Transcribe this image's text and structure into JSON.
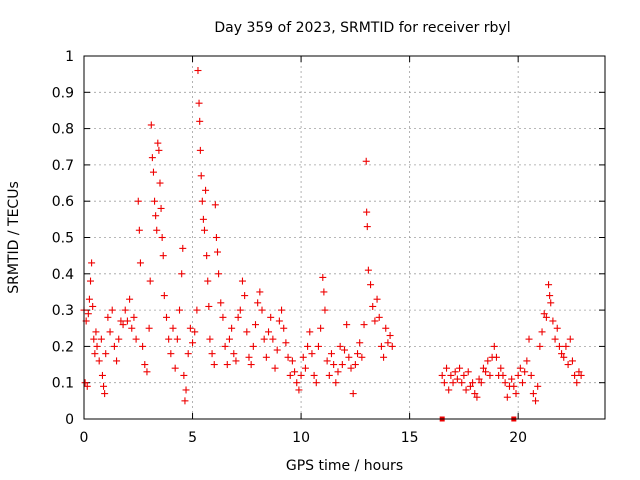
{
  "chart_data": {
    "type": "scatter",
    "title": "Day 359 of 2023, SRMTID for receiver rbyl",
    "xlabel": "GPS time / hours",
    "ylabel": "SRMTID / TECUs",
    "xlim": [
      0,
      24
    ],
    "ylim": [
      0,
      1
    ],
    "x_ticks": [
      0,
      5,
      10,
      15,
      20
    ],
    "y_ticks": [
      0,
      0.1,
      0.2,
      0.3,
      0.4,
      0.5,
      0.6,
      0.7,
      0.8,
      0.9,
      1
    ],
    "grid": true,
    "marker": "plus",
    "color": "#ee0000",
    "series": [
      {
        "name": "SRMTID",
        "points": [
          [
            0.0,
            0.3
          ],
          [
            0.05,
            0.1
          ],
          [
            0.1,
            0.27
          ],
          [
            0.15,
            0.09
          ],
          [
            0.2,
            0.29
          ],
          [
            0.25,
            0.33
          ],
          [
            0.3,
            0.38
          ],
          [
            0.35,
            0.43
          ],
          [
            0.4,
            0.31
          ],
          [
            0.45,
            0.22
          ],
          [
            0.5,
            0.18
          ],
          [
            0.55,
            0.24
          ],
          [
            0.6,
            0.2
          ],
          [
            0.7,
            0.16
          ],
          [
            0.8,
            0.22
          ],
          [
            0.85,
            0.12
          ],
          [
            0.9,
            0.09
          ],
          [
            0.95,
            0.07
          ],
          [
            1.0,
            0.18
          ],
          [
            1.1,
            0.28
          ],
          [
            1.2,
            0.24
          ],
          [
            1.3,
            0.3
          ],
          [
            1.4,
            0.2
          ],
          [
            1.5,
            0.16
          ],
          [
            1.6,
            0.22
          ],
          [
            1.7,
            0.27
          ],
          [
            1.8,
            0.26
          ],
          [
            1.9,
            0.3
          ],
          [
            2.0,
            0.27
          ],
          [
            2.1,
            0.33
          ],
          [
            2.2,
            0.25
          ],
          [
            2.3,
            0.28
          ],
          [
            2.4,
            0.22
          ],
          [
            2.5,
            0.6
          ],
          [
            2.55,
            0.52
          ],
          [
            2.6,
            0.43
          ],
          [
            2.7,
            0.2
          ],
          [
            2.8,
            0.15
          ],
          [
            2.9,
            0.13
          ],
          [
            3.0,
            0.25
          ],
          [
            3.05,
            0.38
          ],
          [
            3.1,
            0.81
          ],
          [
            3.15,
            0.72
          ],
          [
            3.2,
            0.68
          ],
          [
            3.25,
            0.6
          ],
          [
            3.3,
            0.56
          ],
          [
            3.35,
            0.52
          ],
          [
            3.4,
            0.76
          ],
          [
            3.45,
            0.74
          ],
          [
            3.5,
            0.65
          ],
          [
            3.55,
            0.58
          ],
          [
            3.6,
            0.5
          ],
          [
            3.65,
            0.45
          ],
          [
            3.7,
            0.34
          ],
          [
            3.8,
            0.28
          ],
          [
            3.9,
            0.22
          ],
          [
            4.0,
            0.18
          ],
          [
            4.1,
            0.25
          ],
          [
            4.2,
            0.14
          ],
          [
            4.3,
            0.22
          ],
          [
            4.4,
            0.3
          ],
          [
            4.5,
            0.4
          ],
          [
            4.55,
            0.47
          ],
          [
            4.6,
            0.12
          ],
          [
            4.65,
            0.05
          ],
          [
            4.7,
            0.08
          ],
          [
            4.8,
            0.18
          ],
          [
            4.9,
            0.25
          ],
          [
            5.0,
            0.21
          ],
          [
            5.1,
            0.24
          ],
          [
            5.2,
            0.3
          ],
          [
            5.25,
            0.96
          ],
          [
            5.3,
            0.87
          ],
          [
            5.33,
            0.82
          ],
          [
            5.36,
            0.74
          ],
          [
            5.4,
            0.67
          ],
          [
            5.45,
            0.6
          ],
          [
            5.5,
            0.55
          ],
          [
            5.55,
            0.52
          ],
          [
            5.6,
            0.63
          ],
          [
            5.65,
            0.45
          ],
          [
            5.7,
            0.38
          ],
          [
            5.75,
            0.31
          ],
          [
            5.8,
            0.22
          ],
          [
            5.9,
            0.18
          ],
          [
            6.0,
            0.15
          ],
          [
            6.05,
            0.59
          ],
          [
            6.1,
            0.5
          ],
          [
            6.15,
            0.46
          ],
          [
            6.2,
            0.4
          ],
          [
            6.3,
            0.32
          ],
          [
            6.4,
            0.28
          ],
          [
            6.5,
            0.2
          ],
          [
            6.6,
            0.15
          ],
          [
            6.7,
            0.22
          ],
          [
            6.8,
            0.25
          ],
          [
            6.9,
            0.18
          ],
          [
            7.0,
            0.16
          ],
          [
            7.1,
            0.28
          ],
          [
            7.2,
            0.3
          ],
          [
            7.3,
            0.38
          ],
          [
            7.4,
            0.34
          ],
          [
            7.5,
            0.24
          ],
          [
            7.6,
            0.17
          ],
          [
            7.7,
            0.15
          ],
          [
            7.8,
            0.2
          ],
          [
            7.9,
            0.26
          ],
          [
            8.0,
            0.32
          ],
          [
            8.1,
            0.35
          ],
          [
            8.2,
            0.3
          ],
          [
            8.3,
            0.22
          ],
          [
            8.4,
            0.17
          ],
          [
            8.5,
            0.24
          ],
          [
            8.6,
            0.28
          ],
          [
            8.7,
            0.22
          ],
          [
            8.8,
            0.14
          ],
          [
            8.9,
            0.19
          ],
          [
            9.0,
            0.27
          ],
          [
            9.1,
            0.3
          ],
          [
            9.2,
            0.25
          ],
          [
            9.3,
            0.21
          ],
          [
            9.4,
            0.17
          ],
          [
            9.5,
            0.12
          ],
          [
            9.6,
            0.16
          ],
          [
            9.7,
            0.13
          ],
          [
            9.8,
            0.1
          ],
          [
            9.9,
            0.08
          ],
          [
            10.0,
            0.12
          ],
          [
            10.1,
            0.17
          ],
          [
            10.2,
            0.14
          ],
          [
            10.3,
            0.2
          ],
          [
            10.4,
            0.24
          ],
          [
            10.5,
            0.18
          ],
          [
            10.6,
            0.12
          ],
          [
            10.7,
            0.1
          ],
          [
            10.8,
            0.2
          ],
          [
            10.9,
            0.25
          ],
          [
            11.0,
            0.39
          ],
          [
            11.05,
            0.35
          ],
          [
            11.1,
            0.3
          ],
          [
            11.2,
            0.16
          ],
          [
            11.3,
            0.12
          ],
          [
            11.4,
            0.18
          ],
          [
            11.5,
            0.15
          ],
          [
            11.6,
            0.1
          ],
          [
            11.7,
            0.13
          ],
          [
            11.8,
            0.2
          ],
          [
            11.9,
            0.15
          ],
          [
            12.0,
            0.19
          ],
          [
            12.1,
            0.26
          ],
          [
            12.2,
            0.17
          ],
          [
            12.3,
            0.14
          ],
          [
            12.4,
            0.07
          ],
          [
            12.5,
            0.15
          ],
          [
            12.6,
            0.18
          ],
          [
            12.7,
            0.21
          ],
          [
            12.8,
            0.17
          ],
          [
            12.9,
            0.26
          ],
          [
            13.0,
            0.71
          ],
          [
            13.02,
            0.57
          ],
          [
            13.05,
            0.53
          ],
          [
            13.1,
            0.41
          ],
          [
            13.2,
            0.37
          ],
          [
            13.3,
            0.31
          ],
          [
            13.4,
            0.27
          ],
          [
            13.5,
            0.33
          ],
          [
            13.6,
            0.28
          ],
          [
            13.7,
            0.2
          ],
          [
            13.8,
            0.17
          ],
          [
            13.9,
            0.25
          ],
          [
            14.0,
            0.21
          ],
          [
            14.1,
            0.23
          ],
          [
            14.2,
            0.2
          ],
          [
            16.5,
            0.12
          ],
          [
            16.6,
            0.1
          ],
          [
            16.7,
            0.14
          ],
          [
            16.8,
            0.08
          ],
          [
            16.9,
            0.12
          ],
          [
            17.0,
            0.1
          ],
          [
            17.1,
            0.13
          ],
          [
            17.2,
            0.11
          ],
          [
            17.3,
            0.14
          ],
          [
            17.4,
            0.1
          ],
          [
            17.5,
            0.12
          ],
          [
            17.6,
            0.08
          ],
          [
            17.7,
            0.13
          ],
          [
            17.8,
            0.09
          ],
          [
            17.9,
            0.1
          ],
          [
            18.0,
            0.07
          ],
          [
            18.1,
            0.06
          ],
          [
            18.2,
            0.11
          ],
          [
            18.3,
            0.1
          ],
          [
            18.4,
            0.14
          ],
          [
            18.5,
            0.13
          ],
          [
            18.6,
            0.16
          ],
          [
            18.7,
            0.12
          ],
          [
            18.8,
            0.17
          ],
          [
            18.9,
            0.2
          ],
          [
            19.0,
            0.17
          ],
          [
            19.1,
            0.12
          ],
          [
            19.2,
            0.14
          ],
          [
            19.3,
            0.12
          ],
          [
            19.4,
            0.1
          ],
          [
            19.5,
            0.06
          ],
          [
            19.6,
            0.09
          ],
          [
            19.7,
            0.11
          ],
          [
            19.8,
            0.09
          ],
          [
            19.9,
            0.07
          ],
          [
            20.0,
            0.12
          ],
          [
            20.1,
            0.14
          ],
          [
            20.2,
            0.1
          ],
          [
            20.3,
            0.13
          ],
          [
            20.4,
            0.16
          ],
          [
            20.5,
            0.22
          ],
          [
            20.6,
            0.12
          ],
          [
            20.7,
            0.07
          ],
          [
            20.8,
            0.05
          ],
          [
            20.9,
            0.09
          ],
          [
            21.0,
            0.2
          ],
          [
            21.1,
            0.24
          ],
          [
            21.2,
            0.29
          ],
          [
            21.3,
            0.28
          ],
          [
            21.4,
            0.37
          ],
          [
            21.45,
            0.34
          ],
          [
            21.5,
            0.32
          ],
          [
            21.6,
            0.27
          ],
          [
            21.7,
            0.22
          ],
          [
            21.8,
            0.25
          ],
          [
            21.9,
            0.2
          ],
          [
            22.0,
            0.18
          ],
          [
            22.1,
            0.17
          ],
          [
            22.2,
            0.2
          ],
          [
            22.3,
            0.15
          ],
          [
            22.4,
            0.22
          ],
          [
            22.5,
            0.16
          ],
          [
            22.6,
            0.12
          ],
          [
            22.7,
            0.1
          ],
          [
            22.8,
            0.13
          ],
          [
            22.9,
            0.12
          ]
        ]
      },
      {
        "name": "zero-level markers",
        "marker": "square",
        "points": [
          [
            16.5,
            0.0
          ],
          [
            19.8,
            0.0
          ]
        ]
      }
    ]
  }
}
